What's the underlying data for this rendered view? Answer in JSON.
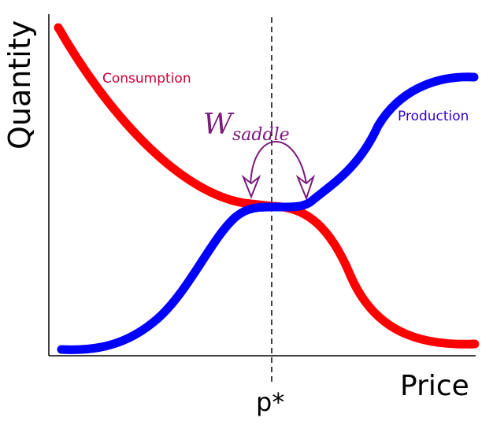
{
  "diagram": {
    "xlabel": "Price",
    "ylabel": "Quantity",
    "marker_label": "p*",
    "annotation": {
      "main": "W",
      "subscript": "saddle"
    },
    "curves": [
      {
        "name": "Consumption",
        "color": "#ff0000",
        "label_color": "#cc0033"
      },
      {
        "name": "Production",
        "color": "#0000ff",
        "label_color": "#3300cc"
      }
    ],
    "annotation_color": "#7a1a7a"
  }
}
